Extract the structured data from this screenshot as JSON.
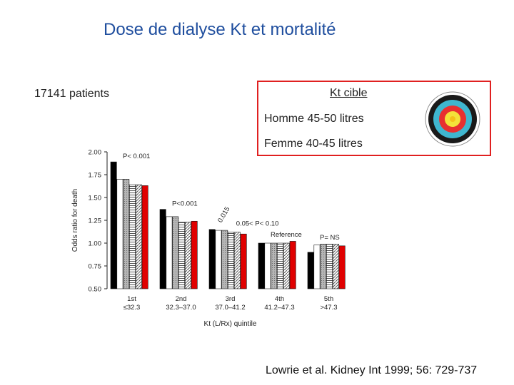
{
  "slide": {
    "title": "Dose de dialyse Kt et mortalité",
    "patients": "17141 patients",
    "citation": "Lowrie et al. Kidney Int 1999; 56: 729-737"
  },
  "target_box": {
    "title": "Kt cible",
    "homme": "Homme 45-50 litres",
    "femme": "Femme 40-45 litres",
    "icon": "archery-target-icon",
    "border_color": "#e02020"
  },
  "chart_data": {
    "type": "bar",
    "xlabel": "Kt (L/Rx) quintile",
    "ylabel": "Odds ratio for death",
    "ylim": [
      0.5,
      2.0
    ],
    "yticks": [
      "0.50",
      "0.75",
      "1.00",
      "1.25",
      "1.50",
      "1.75",
      "2.00"
    ],
    "categories": [
      {
        "rank": "1st",
        "range": "≤32.3"
      },
      {
        "rank": "2nd",
        "range": "32.3–37.0"
      },
      {
        "rank": "3rd",
        "range": "37.0–41.2"
      },
      {
        "rank": "4th",
        "range": "41.2–47.3"
      },
      {
        "rank": "5th",
        "range": ">47.3"
      }
    ],
    "series": [
      {
        "color": "#000000",
        "pattern": "solid-black",
        "values": [
          1.89,
          1.37,
          1.15,
          1.0,
          0.9
        ]
      },
      {
        "color": "#ffffff",
        "pattern": "white",
        "values": [
          1.7,
          1.29,
          1.14,
          1.0,
          0.98
        ]
      },
      {
        "color": "#9a9a9a",
        "pattern": "gray-hatch",
        "values": [
          1.7,
          1.29,
          1.14,
          1.0,
          0.99
        ]
      },
      {
        "color": "#ffffff",
        "pattern": "horizontal-stripes",
        "values": [
          1.64,
          1.23,
          1.12,
          1.0,
          0.99
        ]
      },
      {
        "color": "#ffffff",
        "pattern": "diagonal-stripes",
        "values": [
          1.64,
          1.23,
          1.12,
          1.0,
          0.99
        ]
      },
      {
        "color": "#e00000",
        "pattern": "red",
        "values": [
          1.63,
          1.24,
          1.1,
          1.02,
          0.97
        ]
      }
    ],
    "annotations": [
      {
        "text": "P< 0.001",
        "x": 0,
        "y": 1.93
      },
      {
        "text": "P<0.001",
        "x": 1,
        "y": 1.41
      },
      {
        "text": "0.015",
        "x": 2.0,
        "y": 1.22,
        "rotated": true
      },
      {
        "text": "0.05< P< 0.10",
        "x": 2.3,
        "y": 1.19
      },
      {
        "text": "Reference",
        "x": 3,
        "y": 1.07
      },
      {
        "text": "P= NS",
        "x": 4,
        "y": 1.04
      }
    ]
  }
}
